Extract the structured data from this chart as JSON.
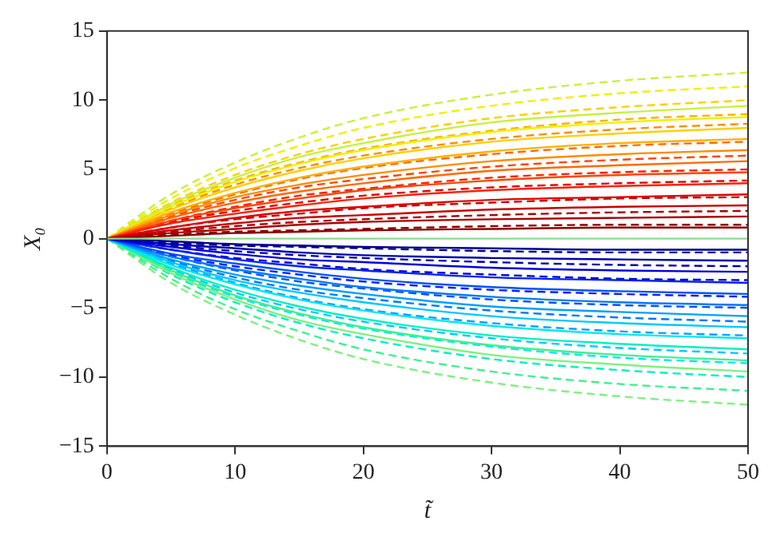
{
  "chart_data": {
    "type": "line",
    "xlabel": "t̃",
    "ylabel": "X₀",
    "x": [
      0,
      5,
      10,
      15,
      20,
      30,
      40,
      50
    ],
    "xlim": [
      0,
      50
    ],
    "xticks": [
      0,
      10,
      20,
      30,
      40,
      50
    ],
    "ylim": [
      -15,
      15
    ],
    "yticks": [
      -15,
      -10,
      -5,
      0,
      5,
      10,
      15
    ],
    "grid": false,
    "legend": false,
    "marker": "none",
    "series": [
      {
        "color": "#90d890",
        "line_style": "solid",
        "values": [
          0,
          0,
          0,
          0,
          0,
          0,
          0,
          0
        ]
      },
      {
        "color": "#8b0000",
        "line_style": "solid",
        "values": [
          0,
          0.2,
          0.4,
          0.5,
          0.6,
          0.7,
          0.8,
          0.8
        ]
      },
      {
        "color": "#a80000",
        "line_style": "solid",
        "values": [
          0,
          0.4,
          0.7,
          1,
          1.2,
          1.4,
          1.5,
          1.6
        ]
      },
      {
        "color": "#c80000",
        "line_style": "solid",
        "values": [
          0,
          0.6,
          1.1,
          1.5,
          1.7,
          2.1,
          2.3,
          2.4
        ]
      },
      {
        "color": "#e00000",
        "line_style": "solid",
        "values": [
          0,
          0.8,
          1.5,
          2,
          2.3,
          2.8,
          3,
          3.2
        ]
      },
      {
        "color": "#ff2000",
        "line_style": "solid",
        "values": [
          0,
          1.1,
          1.8,
          2.4,
          2.9,
          3.5,
          3.8,
          4
        ]
      },
      {
        "color": "#ff4500",
        "line_style": "solid",
        "values": [
          0,
          1.3,
          2.2,
          2.9,
          3.5,
          4.2,
          4.6,
          4.8
        ]
      },
      {
        "color": "#ff6a00",
        "line_style": "solid",
        "values": [
          0,
          1.5,
          2.6,
          3.4,
          4,
          4.9,
          5.3,
          5.6
        ]
      },
      {
        "color": "#ff8c00",
        "line_style": "solid",
        "values": [
          0,
          1.7,
          3,
          3.9,
          4.6,
          5.6,
          6.1,
          6.4
        ]
      },
      {
        "color": "#ffb000",
        "line_style": "solid",
        "values": [
          0,
          1.9,
          3.3,
          4.4,
          5.2,
          6.3,
          6.9,
          7.2
        ]
      },
      {
        "color": "#ffd000",
        "line_style": "solid",
        "values": [
          0,
          2.1,
          3.7,
          4.9,
          5.8,
          7,
          7.6,
          8
        ]
      },
      {
        "color": "#f0f000",
        "line_style": "solid",
        "values": [
          0,
          2.3,
          4.1,
          5.4,
          6.4,
          7.7,
          8.4,
          8.8
        ]
      },
      {
        "color": "#c8f040",
        "line_style": "solid",
        "values": [
          0,
          2.5,
          4.4,
          5.9,
          6.9,
          8.4,
          9.1,
          9.6
        ]
      },
      {
        "color": "#8b0000",
        "line_style": "dashed",
        "values": [
          0,
          0.3,
          0.5,
          0.6,
          0.7,
          0.9,
          1,
          1
        ]
      },
      {
        "color": "#a80000",
        "line_style": "dashed",
        "values": [
          0,
          0.5,
          0.9,
          1.2,
          1.4,
          1.7,
          1.9,
          2
        ]
      },
      {
        "color": "#c80000",
        "line_style": "dashed",
        "values": [
          0,
          0.8,
          1.4,
          1.8,
          2.2,
          2.6,
          2.9,
          3
        ]
      },
      {
        "color": "#e00000",
        "line_style": "dashed",
        "values": [
          0,
          1.2,
          2,
          2.6,
          3.1,
          3.7,
          4,
          4.2
        ]
      },
      {
        "color": "#ff2000",
        "line_style": "dashed",
        "values": [
          0,
          1.3,
          2.3,
          3.1,
          3.6,
          4.4,
          4.8,
          5
        ]
      },
      {
        "color": "#ff4500",
        "line_style": "dashed",
        "values": [
          0,
          1.6,
          2.8,
          3.7,
          4.3,
          5.2,
          5.7,
          6
        ]
      },
      {
        "color": "#ff6a00",
        "line_style": "dashed",
        "values": [
          0,
          1.8,
          3.2,
          4.3,
          5.1,
          6.1,
          6.7,
          7
        ]
      },
      {
        "color": "#ff8c00",
        "line_style": "dashed",
        "values": [
          0,
          2.2,
          3.9,
          5.1,
          6,
          7.2,
          7.9,
          8.3
        ]
      },
      {
        "color": "#ffb000",
        "line_style": "dashed",
        "values": [
          0,
          2.4,
          4.2,
          5.5,
          6.5,
          7.8,
          8.6,
          9
        ]
      },
      {
        "color": "#ffd000",
        "line_style": "dashed",
        "values": [
          0,
          2.6,
          4.6,
          6.1,
          7.2,
          8.7,
          9.5,
          10
        ]
      },
      {
        "color": "#f0f000",
        "line_style": "dashed",
        "values": [
          0,
          2.9,
          5.1,
          6.7,
          8,
          9.6,
          10.5,
          11
        ]
      },
      {
        "color": "#c8f040",
        "line_style": "dashed",
        "values": [
          0,
          3.2,
          5.5,
          7.3,
          8.7,
          10.4,
          11.4,
          12
        ]
      },
      {
        "color": "#00008b",
        "line_style": "solid",
        "values": [
          0,
          -0.2,
          -0.4,
          -0.5,
          -0.6,
          -0.7,
          -0.8,
          -0.8
        ]
      },
      {
        "color": "#0000b0",
        "line_style": "solid",
        "values": [
          0,
          -0.4,
          -0.7,
          -1,
          -1.2,
          -1.4,
          -1.5,
          -1.6
        ]
      },
      {
        "color": "#0000d8",
        "line_style": "solid",
        "values": [
          0,
          -0.6,
          -1.1,
          -1.5,
          -1.7,
          -2.1,
          -2.3,
          -2.4
        ]
      },
      {
        "color": "#0020ff",
        "line_style": "solid",
        "values": [
          0,
          -0.8,
          -1.5,
          -2,
          -2.3,
          -2.8,
          -3,
          -3.2
        ]
      },
      {
        "color": "#0050ff",
        "line_style": "solid",
        "values": [
          0,
          -1.1,
          -1.8,
          -2.4,
          -2.9,
          -3.5,
          -3.8,
          -4
        ]
      },
      {
        "color": "#0078ff",
        "line_style": "solid",
        "values": [
          0,
          -1.3,
          -2.2,
          -2.9,
          -3.5,
          -4.2,
          -4.6,
          -4.8
        ]
      },
      {
        "color": "#00a0ff",
        "line_style": "solid",
        "values": [
          0,
          -1.5,
          -2.6,
          -3.4,
          -4,
          -4.9,
          -5.3,
          -5.6
        ]
      },
      {
        "color": "#00c8ff",
        "line_style": "solid",
        "values": [
          0,
          -1.7,
          -3,
          -3.9,
          -4.6,
          -5.6,
          -6.1,
          -6.4
        ]
      },
      {
        "color": "#00e8f0",
        "line_style": "solid",
        "values": [
          0,
          -1.9,
          -3.3,
          -4.4,
          -5.2,
          -6.3,
          -6.9,
          -7.2
        ]
      },
      {
        "color": "#00f0c0",
        "line_style": "solid",
        "values": [
          0,
          -2.1,
          -3.7,
          -4.9,
          -5.8,
          -7,
          -7.6,
          -8
        ]
      },
      {
        "color": "#40f090",
        "line_style": "solid",
        "values": [
          0,
          -2.3,
          -4.1,
          -5.4,
          -6.4,
          -7.7,
          -8.4,
          -8.8
        ]
      },
      {
        "color": "#80f080",
        "line_style": "solid",
        "values": [
          0,
          -2.5,
          -4.4,
          -5.9,
          -6.9,
          -8.4,
          -9.1,
          -9.6
        ]
      },
      {
        "color": "#00008b",
        "line_style": "dashed",
        "values": [
          0,
          -0.3,
          -0.5,
          -0.6,
          -0.7,
          -0.9,
          -1,
          -1
        ]
      },
      {
        "color": "#0000b0",
        "line_style": "dashed",
        "values": [
          0,
          -0.5,
          -0.9,
          -1.2,
          -1.4,
          -1.7,
          -1.9,
          -2
        ]
      },
      {
        "color": "#0000d8",
        "line_style": "dashed",
        "values": [
          0,
          -0.8,
          -1.4,
          -1.8,
          -2.2,
          -2.6,
          -2.9,
          -3
        ]
      },
      {
        "color": "#0020ff",
        "line_style": "dashed",
        "values": [
          0,
          -1.2,
          -2,
          -2.6,
          -3.1,
          -3.7,
          -4,
          -4.2
        ]
      },
      {
        "color": "#0050ff",
        "line_style": "dashed",
        "values": [
          0,
          -1.3,
          -2.3,
          -3.1,
          -3.6,
          -4.4,
          -4.8,
          -5
        ]
      },
      {
        "color": "#0078ff",
        "line_style": "dashed",
        "values": [
          0,
          -1.6,
          -2.8,
          -3.7,
          -4.3,
          -5.2,
          -5.7,
          -6
        ]
      },
      {
        "color": "#00a0ff",
        "line_style": "dashed",
        "values": [
          0,
          -1.8,
          -3.2,
          -4.3,
          -5.1,
          -6.1,
          -6.7,
          -7
        ]
      },
      {
        "color": "#00c8ff",
        "line_style": "dashed",
        "values": [
          0,
          -2.2,
          -3.9,
          -5.1,
          -6,
          -7.2,
          -7.9,
          -8.3
        ]
      },
      {
        "color": "#00e8f0",
        "line_style": "dashed",
        "values": [
          0,
          -2.4,
          -4.2,
          -5.5,
          -6.5,
          -7.8,
          -8.6,
          -9
        ]
      },
      {
        "color": "#00f0c0",
        "line_style": "dashed",
        "values": [
          0,
          -2.6,
          -4.6,
          -6.1,
          -7.2,
          -8.7,
          -9.5,
          -10
        ]
      },
      {
        "color": "#40f090",
        "line_style": "dashed",
        "values": [
          0,
          -2.9,
          -5.1,
          -6.7,
          -8,
          -9.6,
          -10.5,
          -11
        ]
      },
      {
        "color": "#80f080",
        "line_style": "dashed",
        "values": [
          0,
          -3.2,
          -5.5,
          -7.3,
          -8.7,
          -10.4,
          -11.4,
          -12
        ]
      }
    ]
  }
}
